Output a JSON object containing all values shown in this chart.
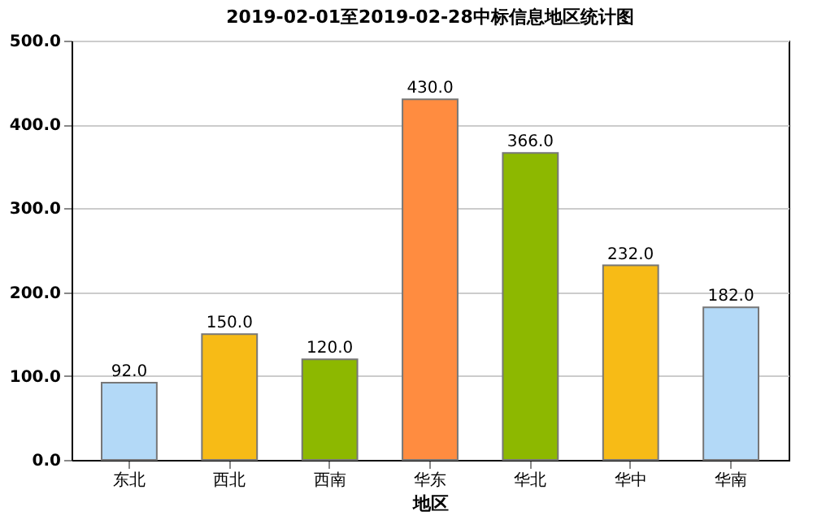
{
  "chart_data": {
    "type": "bar",
    "title": "2019-02-01至2019-02-28中标信息地区统计图",
    "xlabel": "地区",
    "categories": [
      "东北",
      "西北",
      "西南",
      "华东",
      "华北",
      "华中",
      "华南"
    ],
    "values": [
      92,
      150,
      120,
      430,
      366,
      232,
      182
    ],
    "value_labels": [
      "92.0",
      "150.0",
      "120.0",
      "430.0",
      "366.0",
      "232.0",
      "182.0"
    ],
    "colors": [
      "#b3d9f7",
      "#f7bb16",
      "#8db800",
      "#ff8c40",
      "#8db800",
      "#f7bb16",
      "#b3d9f7"
    ],
    "ylim": [
      0,
      500
    ],
    "yticks": [
      {
        "value": 0,
        "label": "0.0"
      },
      {
        "value": 100,
        "label": "100.0"
      },
      {
        "value": 200,
        "label": "200.0"
      },
      {
        "value": 300,
        "label": "300.0"
      },
      {
        "value": 400,
        "label": "400.0"
      },
      {
        "value": 500,
        "label": "500.0"
      }
    ],
    "grid": "y"
  }
}
